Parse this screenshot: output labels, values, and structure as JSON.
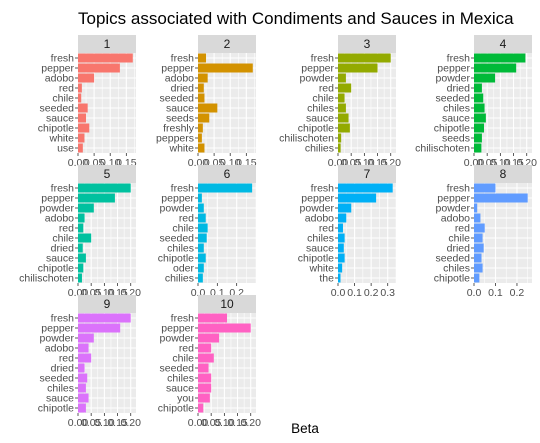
{
  "chart_data": {
    "type": "bar",
    "orientation": "horizontal",
    "title": "Topics associated with Condiments and Sauces in Mexica",
    "xlabel": "Beta",
    "ylabel": "",
    "grid": true,
    "legend": "none",
    "panels": [
      {
        "label": "1",
        "color": "#F8766D",
        "xlim": [
          0,
          0.18
        ],
        "xticks": [
          0.0,
          0.05,
          0.1,
          0.15
        ],
        "xtick_labels": [
          "0.00",
          "0.05",
          "0.10",
          "0.15"
        ],
        "categories": [
          "fresh",
          "pepper",
          "adobo",
          "red",
          "chile",
          "seeded",
          "sauce",
          "chipotle",
          "white",
          "use"
        ],
        "values": [
          0.17,
          0.13,
          0.05,
          0.012,
          0.01,
          0.03,
          0.025,
          0.035,
          0.02,
          0.015
        ]
      },
      {
        "label": "2",
        "color": "#D39200",
        "xlim": [
          0,
          0.18
        ],
        "xticks": [
          0.0,
          0.05,
          0.1,
          0.15
        ],
        "xtick_labels": [
          "0.00",
          "0.05",
          "0.10",
          "0.15"
        ],
        "categories": [
          "fresh",
          "pepper",
          "adobo",
          "dried",
          "seeded",
          "sauce",
          "seeds",
          "freshly",
          "peppers",
          "white"
        ],
        "values": [
          0.025,
          0.17,
          0.03,
          0.018,
          0.02,
          0.06,
          0.035,
          0.015,
          0.012,
          0.02
        ]
      },
      {
        "label": "3",
        "color": "#93AA00",
        "xlim": [
          0,
          0.22
        ],
        "xticks": [
          0.0,
          0.05,
          0.1,
          0.15,
          0.2
        ],
        "xtick_labels": [
          "0.00",
          "0.05",
          "0.10",
          "0.15",
          "0.20"
        ],
        "categories": [
          "fresh",
          "pepper",
          "powder",
          "red",
          "chile",
          "chiles",
          "sauce",
          "chipotle",
          "chilischoten",
          "chilies"
        ],
        "values": [
          0.2,
          0.15,
          0.03,
          0.05,
          0.025,
          0.03,
          0.04,
          0.045,
          0.012,
          0.01
        ]
      },
      {
        "label": "4",
        "color": "#00BA38",
        "xlim": [
          0,
          0.22
        ],
        "xticks": [
          0.0,
          0.05,
          0.1,
          0.15,
          0.2
        ],
        "xtick_labels": [
          "0.00",
          "0.05",
          "0.10",
          "0.15",
          "0.20"
        ],
        "categories": [
          "fresh",
          "pepper",
          "powder",
          "dried",
          "seeded",
          "chiles",
          "sauce",
          "chipotle",
          "seeds",
          "chilischoten"
        ],
        "values": [
          0.195,
          0.16,
          0.08,
          0.03,
          0.035,
          0.04,
          0.045,
          0.038,
          0.03,
          0.028
        ]
      },
      {
        "label": "5",
        "color": "#00C19F",
        "xlim": [
          0,
          0.22
        ],
        "xticks": [
          0.0,
          0.05,
          0.1,
          0.15,
          0.2
        ],
        "xtick_labels": [
          "0.00",
          "0.05",
          "0.10",
          "0.15",
          "0.20"
        ],
        "categories": [
          "fresh",
          "pepper",
          "powder",
          "adobo",
          "red",
          "chile",
          "dried",
          "sauce",
          "chipotle",
          "chilischoten"
        ],
        "values": [
          0.2,
          0.14,
          0.06,
          0.025,
          0.02,
          0.05,
          0.018,
          0.03,
          0.02,
          0.015
        ]
      },
      {
        "label": "6",
        "color": "#00B9E3",
        "xlim": [
          0,
          0.3
        ],
        "xticks": [
          0.0,
          0.1,
          0.2
        ],
        "xtick_labels": [
          "0.0",
          "0.1",
          "0.2"
        ],
        "categories": [
          "fresh",
          "pepper",
          "powder",
          "red",
          "chile",
          "seeded",
          "chiles",
          "chipotle",
          "oder",
          "chilies"
        ],
        "values": [
          0.28,
          0.02,
          0.03,
          0.04,
          0.05,
          0.045,
          0.03,
          0.04,
          0.03,
          0.025
        ]
      },
      {
        "label": "7",
        "color": "#00B0F6",
        "xlim": [
          0,
          0.35
        ],
        "xticks": [
          0.0,
          0.1,
          0.2,
          0.3
        ],
        "xtick_labels": [
          "0.0",
          "0.1",
          "0.2",
          "0.3"
        ],
        "categories": [
          "fresh",
          "pepper",
          "powder",
          "adobo",
          "red",
          "chiles",
          "sauce",
          "chipotle",
          "white",
          "the"
        ],
        "values": [
          0.33,
          0.23,
          0.08,
          0.05,
          0.03,
          0.04,
          0.035,
          0.04,
          0.025,
          0.015
        ]
      },
      {
        "label": "8",
        "color": "#619CFF",
        "xlim": [
          0,
          0.27
        ],
        "xticks": [
          0.0,
          0.1,
          0.2
        ],
        "xtick_labels": [
          "0.0",
          "0.1",
          "0.2"
        ],
        "categories": [
          "fresh",
          "pepper",
          "powder",
          "adobo",
          "red",
          "chile",
          "dried",
          "seeded",
          "chiles",
          "chipotle"
        ],
        "values": [
          0.1,
          0.25,
          0.015,
          0.03,
          0.05,
          0.04,
          0.045,
          0.035,
          0.04,
          0.025
        ]
      },
      {
        "label": "9",
        "color": "#DB72FB",
        "xlim": [
          0,
          0.22
        ],
        "xticks": [
          0.0,
          0.05,
          0.1,
          0.15,
          0.2
        ],
        "xtick_labels": [
          "0.00",
          "0.05",
          "0.10",
          "0.15",
          "0.20"
        ],
        "categories": [
          "fresh",
          "pepper",
          "powder",
          "adobo",
          "red",
          "dried",
          "seeded",
          "chiles",
          "sauce",
          "chipotle"
        ],
        "values": [
          0.2,
          0.16,
          0.06,
          0.04,
          0.05,
          0.025,
          0.035,
          0.03,
          0.04,
          0.03
        ]
      },
      {
        "label": "10",
        "color": "#FF61C3",
        "xlim": [
          0,
          0.22
        ],
        "xticks": [
          0.0,
          0.05,
          0.1,
          0.15,
          0.2
        ],
        "xtick_labels": [
          "0.00",
          "0.05",
          "0.10",
          "0.15",
          "0.20"
        ],
        "categories": [
          "fresh",
          "pepper",
          "powder",
          "red",
          "chile",
          "seeded",
          "chiles",
          "sauce",
          "you",
          "chipotle"
        ],
        "values": [
          0.11,
          0.2,
          0.08,
          0.05,
          0.06,
          0.04,
          0.05,
          0.05,
          0.045,
          0.02
        ]
      }
    ]
  }
}
